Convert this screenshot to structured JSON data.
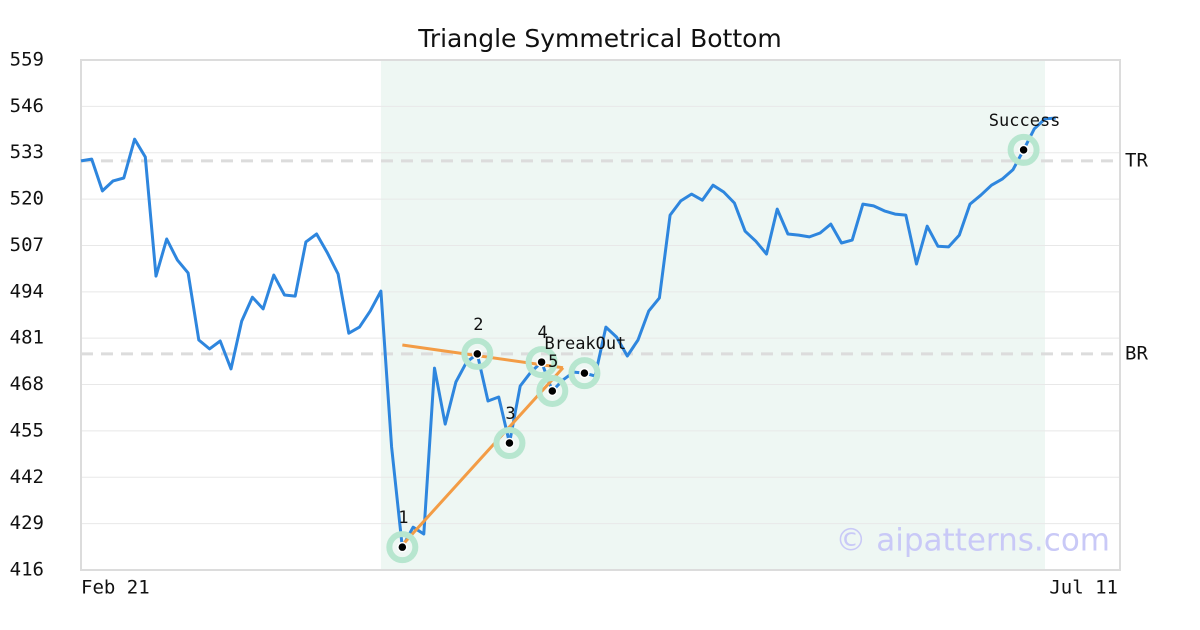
{
  "chart_data": {
    "type": "line",
    "title": "Triangle Symmetrical Bottom",
    "color": "#2e86de",
    "categories": [
      "Feb 21",
      null,
      null,
      null,
      null,
      null,
      null,
      null,
      null,
      null,
      null,
      null,
      null,
      null,
      null,
      null,
      null,
      null,
      null,
      null,
      null,
      null,
      null,
      null,
      null,
      null,
      null,
      null,
      null,
      null,
      null,
      null,
      null,
      null,
      null,
      null,
      null,
      null,
      null,
      null,
      null,
      null,
      null,
      null,
      null,
      null,
      null,
      null,
      null,
      null,
      null,
      null,
      null,
      null,
      null,
      null,
      null,
      null,
      null,
      null,
      null,
      null,
      null,
      null,
      null,
      null,
      null,
      null,
      null,
      null,
      null,
      null,
      null,
      null,
      null,
      null,
      null,
      null,
      null,
      null,
      null,
      null,
      null,
      null,
      null,
      null,
      null,
      null,
      null,
      null,
      null,
      null,
      null,
      null,
      null,
      null,
      null,
      "Jul 11"
    ],
    "values": [
      530.7,
      531.2,
      522.3,
      525.1,
      525.9,
      536.8,
      531.8,
      498.4,
      508.8,
      502.9,
      499.3,
      480.5,
      478.0,
      480.2,
      472.4,
      485.8,
      492.5,
      489.2,
      498.7,
      493.1,
      492.8,
      508.0,
      510.2,
      504.9,
      499.0,
      482.4,
      484.1,
      488.6,
      494.2,
      450.5,
      422.4,
      428.0,
      426.1,
      472.6,
      456.9,
      468.7,
      474.3,
      476.6,
      463.4,
      464.5,
      451.6,
      467.6,
      471.5,
      474.3,
      466.2,
      469.3,
      471.5,
      471.2,
      470.4,
      484.1,
      481.3,
      476.0,
      480.5,
      488.6,
      492.3,
      515.5,
      519.5,
      521.4,
      519.7,
      523.9,
      522.0,
      518.9,
      511.0,
      508.2,
      504.6,
      517.2,
      510.2,
      509.9,
      509.4,
      510.5,
      513.0,
      507.7,
      508.5,
      518.6,
      518.1,
      516.7,
      515.8,
      515.5,
      501.8,
      512.4,
      506.8,
      506.6,
      509.9,
      518.6,
      521.1,
      523.9,
      525.6,
      528.2,
      533.8,
      539.7,
      542.5,
      542.7,
      null,
      null,
      null,
      null,
      null,
      null
    ],
    "ylim": [
      416,
      559
    ],
    "yticks": [
      416,
      429,
      442,
      455,
      468,
      481,
      494,
      507,
      520,
      533,
      546,
      559
    ],
    "grid": true,
    "shaded_range": [
      28,
      90
    ],
    "shade_color": "#eef7f3",
    "levels": [
      {
        "label": "TR",
        "value": 530.7
      },
      {
        "label": "BR",
        "value": 476.6
      }
    ],
    "trendlines": [
      {
        "x": [
          30,
          45
        ],
        "values": [
          479.1,
          472.7
        ]
      },
      {
        "x": [
          30,
          45
        ],
        "values": [
          423.0,
          472.7
        ]
      }
    ],
    "trend_color": "#f39c45",
    "points": [
      {
        "label": "1",
        "x": 30,
        "value": 422.4
      },
      {
        "label": "2",
        "x": 37,
        "value": 476.6
      },
      {
        "label": "3",
        "x": 40,
        "value": 451.6
      },
      {
        "label": "4",
        "x": 43,
        "value": 474.3
      },
      {
        "label": "5",
        "x": 44,
        "value": 466.2
      },
      {
        "label": "BreakOut",
        "x": 47,
        "value": 471.2
      },
      {
        "label": "Success",
        "x": 88,
        "value": 533.8
      }
    ],
    "watermark": "© aipatterns.com"
  }
}
